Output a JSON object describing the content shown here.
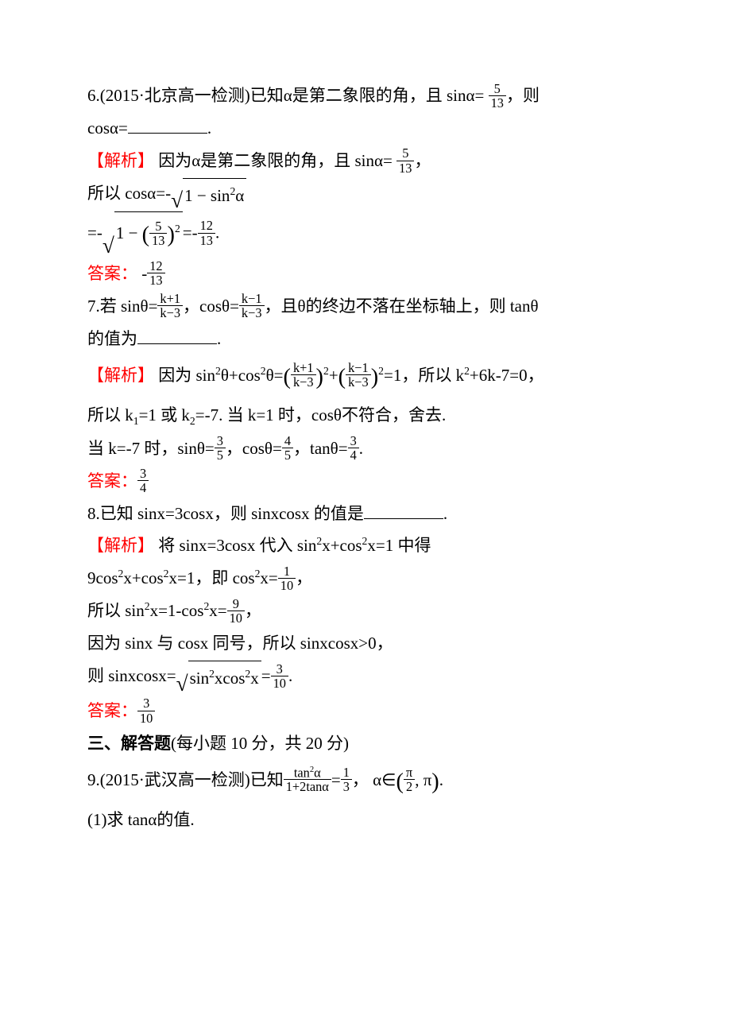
{
  "q6": {
    "prefix": "6.(2015·北京高一检测)已知α是第二象限的角，且 sinα=",
    "sin_num": "5",
    "sin_den": "13",
    "tail": "，则",
    "line2a": "cosα=",
    "line2b": "."
  },
  "q6sol": {
    "label": "【解析】",
    "l1a": "因为α是第二象限的角，且 sinα=",
    "l1num": "5",
    "l1den": "13",
    "l1b": "，",
    "l2": "所以 cosα=-",
    "l2rad": "1 − sin",
    "l2radtail": "α",
    "l3a": "=-",
    "l3rad_a": "1 − ",
    "l3in_num": "5",
    "l3in_den": "13",
    "l3b": "=-",
    "l3out_num": "12",
    "l3out_den": "13",
    "l3c": ".",
    "ans_label": "答案：",
    "ans_pre": "-",
    "ans_num": "12",
    "ans_den": "13"
  },
  "q7": {
    "a": "7.若 sinθ=",
    "f1n": "k+1",
    "f1d": "k−3",
    "b": "，cosθ=",
    "f2n": "k−1",
    "f2d": "k−3",
    "c": "，且θ的终边不落在坐标轴上，则 tanθ",
    "l2a": "的值为",
    "l2b": "."
  },
  "q7sol": {
    "label": "【解析】",
    "l1a": "因为 sin",
    "l1b": "θ+cos",
    "l1c": "θ=",
    "l1f1n": "k+1",
    "l1f1d": "k−3",
    "l1plus": "+",
    "l1f2n": "k−1",
    "l1f2d": "k−3",
    "l1d": "=1，所以 k",
    "l1e": "+6k-7=0，",
    "l2a": "所以 k",
    "l2b": "=1 或 k",
    "l2c": "=-7. 当 k=1 时，cosθ不符合，舍去.",
    "l3a": "当 k=-7 时，sinθ=",
    "sn": "3",
    "sd": "5",
    "l3b": "，cosθ=",
    "cn": "4",
    "cd": "5",
    "l3c": "，tanθ=",
    "tn": "3",
    "td": "4",
    "l3d": ".",
    "ans_label": "答案：",
    "ans_n": "3",
    "ans_d": "4"
  },
  "q8": {
    "q": "8.已知 sinx=3cosx，则 sinxcosx 的值是",
    "qend": "."
  },
  "q8sol": {
    "label": "【解析】",
    "l1": "将 sinx=3cosx 代入 sin",
    "l1b": "x+cos",
    "l1c": "x=1 中得",
    "l2a": "9cos",
    "l2b": "x+cos",
    "l2c": "x=1，即 cos",
    "l2d": "x=",
    "f1n": "1",
    "f1d": "10",
    "l2e": "，",
    "l3a": "所以 sin",
    "l3b": "x=1-cos",
    "l3c": "x=",
    "f2n": "9",
    "f2d": "10",
    "l3d": "，",
    "l4": "因为 sinx 与 cosx 同号，所以 sinxcosx>0，",
    "l5a": "则 sinxcosx=",
    "rad": "sin",
    "radmid": "xcos",
    "radend": "x",
    "l5b": "=",
    "f3n": "3",
    "f3d": "10",
    "l5c": ".",
    "ans_label": "答案：",
    "ans_n": "3",
    "ans_d": "10"
  },
  "sec3": "三、解答题",
  "sec3_tail": "(每小题 10 分，共 20 分)",
  "q9": {
    "a": "9.(2015·武汉高一检测)已知",
    "fn_top_a": "tan",
    "fn_top_b": "α",
    "fn_bot": "1+2tanα",
    "eq": "=",
    "rn": "1",
    "rd": "3",
    "mid": "， α∈",
    "in_n": "π",
    "in_d": "2",
    "comma": ", π",
    "tail": ".",
    "part1": "(1)求 tanα的值."
  }
}
